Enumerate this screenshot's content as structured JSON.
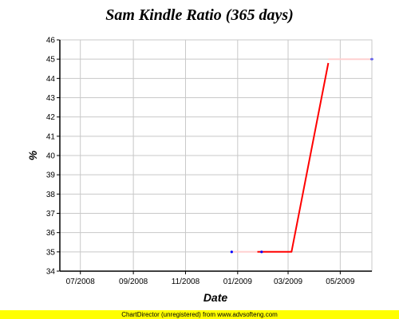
{
  "chart_data": {
    "type": "line",
    "title": "Sam Kindle Ratio (365 days)",
    "xlabel": "Date",
    "ylabel": "%",
    "ylim": [
      34,
      46
    ],
    "yticks": [
      34,
      35,
      36,
      37,
      38,
      39,
      40,
      41,
      42,
      43,
      44,
      45,
      46
    ],
    "xlim": [
      "2008-06-07",
      "2009-06-07"
    ],
    "xticks": [
      {
        "date": "2008-07-01",
        "label": "07/2008"
      },
      {
        "date": "2008-09-01",
        "label": "09/2008"
      },
      {
        "date": "2008-11-01",
        "label": "11/2008"
      },
      {
        "date": "2009-01-01",
        "label": "01/2009"
      },
      {
        "date": "2009-03-01",
        "label": "03/2009"
      },
      {
        "date": "2009-05-01",
        "label": "05/2009"
      }
    ],
    "grid": true,
    "series": [
      {
        "color": "#ff0000",
        "points": [
          {
            "x": "2009-01-24",
            "y": 35.0
          },
          {
            "x": "2009-03-05",
            "y": 35.0
          },
          {
            "x": "2009-04-17",
            "y": 44.8
          }
        ]
      },
      {
        "color": "#ffd0d0",
        "points": [
          {
            "x": "2008-12-25",
            "y": 35.0
          },
          {
            "x": "2009-01-24",
            "y": 35.0
          }
        ]
      },
      {
        "color": "#ffd0d0",
        "points": [
          {
            "x": "2009-04-17",
            "y": 45.0
          },
          {
            "x": "2009-06-07",
            "y": 45.0
          }
        ]
      }
    ],
    "markers": [
      {
        "x": "2008-12-25",
        "y": 35.0,
        "color": "#0000ff"
      },
      {
        "x": "2009-01-29",
        "y": 35.0,
        "color": "#0000ff"
      },
      {
        "x": "2009-06-07",
        "y": 45.0,
        "color": "#0000ff"
      }
    ]
  },
  "footer": {
    "text": "ChartDirector (unregistered) from www.advsofteng.com",
    "background": "#ffff00"
  }
}
